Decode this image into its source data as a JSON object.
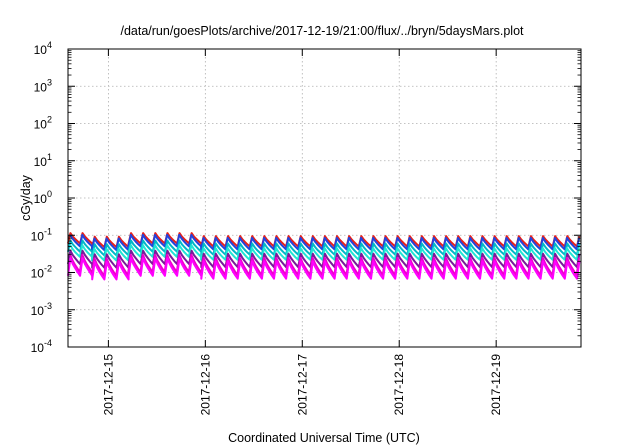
{
  "chart_data": {
    "type": "line",
    "title": "/data/run/goesPlots/archive/2017-12-19/21:00/flux/../bryn/5daysMars.plot",
    "xlabel": "Coordinated Universal Time (UTC)",
    "ylabel": "cGy/day",
    "xlim": [
      "2017-12-14T14:00",
      "2017-12-19T21:00"
    ],
    "ylim": [
      0.0001,
      10000
    ],
    "yscale": "log",
    "grid": true,
    "x_ticks": [
      "2017-12-15",
      "2017-12-16",
      "2017-12-17",
      "2017-12-18",
      "2017-12-19"
    ],
    "y_ticks": [
      {
        "value": 0.0001,
        "base": "10",
        "exp": "-4"
      },
      {
        "value": 0.001,
        "base": "10",
        "exp": "-3"
      },
      {
        "value": 0.01,
        "base": "10",
        "exp": "-2"
      },
      {
        "value": 0.1,
        "base": "10",
        "exp": "-1"
      },
      {
        "value": 1,
        "base": "10",
        "exp": "0"
      },
      {
        "value": 10,
        "base": "10",
        "exp": "1"
      },
      {
        "value": 100,
        "base": "10",
        "exp": "2"
      },
      {
        "value": 1000,
        "base": "10",
        "exp": "3"
      },
      {
        "value": 10000,
        "base": "10",
        "exp": "4"
      }
    ],
    "series": [
      {
        "color": "#e8201a",
        "peak": 0.095,
        "trough": 0.05
      },
      {
        "color": "#2244dd",
        "peak": 0.085,
        "trough": 0.042
      },
      {
        "color": "#00b8c8",
        "peak": 0.06,
        "trough": 0.03
      },
      {
        "color": "#20e6d6",
        "peak": 0.045,
        "trough": 0.022
      },
      {
        "color": "#7a1a9a",
        "peak": 0.032,
        "trough": 0.014
      },
      {
        "color": "#ee00cc",
        "peak": 0.025,
        "trough": 0.0085
      },
      {
        "color": "#ff00ff",
        "peak": 0.02,
        "trough": 0.0068
      }
    ],
    "cycles_per_day": 8,
    "early_boost_until": "2017-12-15T22:00",
    "early_boost_factor": 1.2,
    "dip_at": "2017-12-15T00:00",
    "dip_factor": 0.8
  }
}
